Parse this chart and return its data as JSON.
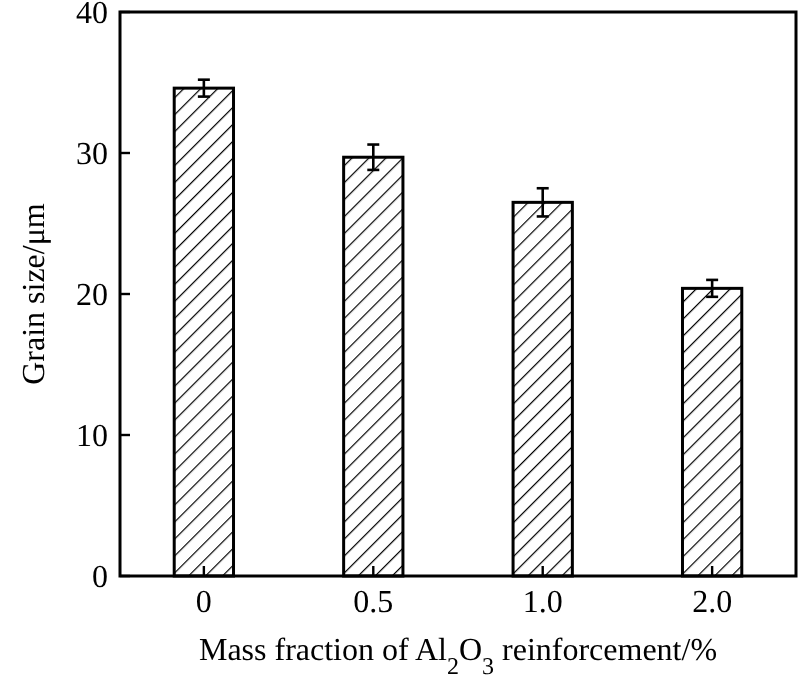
{
  "chart_data": {
    "type": "bar",
    "xlabel": "Mass fraction of Al$_{2}$O$_{3}$ reinforcement/%",
    "ylabel": "Grain size/μm",
    "categories": [
      "0",
      "0.5",
      "1.0",
      "2.0"
    ],
    "values": [
      34.6,
      29.7,
      26.5,
      20.4
    ],
    "errors": [
      0.6,
      0.9,
      1.0,
      0.6
    ],
    "color": "#000000",
    "ylim": [
      0,
      40
    ],
    "yticks": [
      0,
      10,
      20,
      30,
      40
    ]
  }
}
